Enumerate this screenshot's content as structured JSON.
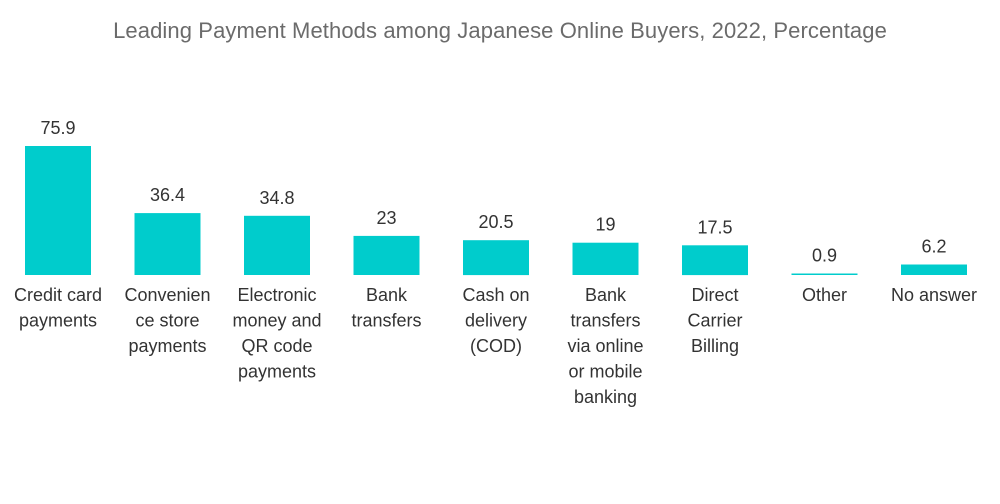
{
  "chart_data": {
    "type": "bar",
    "title": "Leading Payment Methods among Japanese Online Buyers, 2022, Percentage",
    "xlabel": "",
    "ylabel": "",
    "ylim": [
      0,
      80
    ],
    "grid": false,
    "legend": "none",
    "bar_color": "#00CCCC",
    "categories": [
      [
        "Credit card",
        "payments"
      ],
      [
        "Convenien",
        "ce store",
        "payments"
      ],
      [
        "Electronic",
        "money and",
        "QR code",
        "payments"
      ],
      [
        "Bank",
        "transfers"
      ],
      [
        "Cash on",
        "delivery",
        "(COD)"
      ],
      [
        "Bank",
        "transfers",
        "via online",
        "or mobile",
        "banking"
      ],
      [
        "Direct",
        "Carrier",
        "Billing"
      ],
      [
        "Other"
      ],
      [
        "No answer"
      ]
    ],
    "values": [
      75.9,
      36.4,
      34.8,
      23,
      20.5,
      19,
      17.5,
      0.9,
      6.2
    ],
    "value_labels": [
      "75.9",
      "36.4",
      "34.8",
      "23",
      "20.5",
      "19",
      "17.5",
      "0.9",
      "6.2"
    ]
  }
}
